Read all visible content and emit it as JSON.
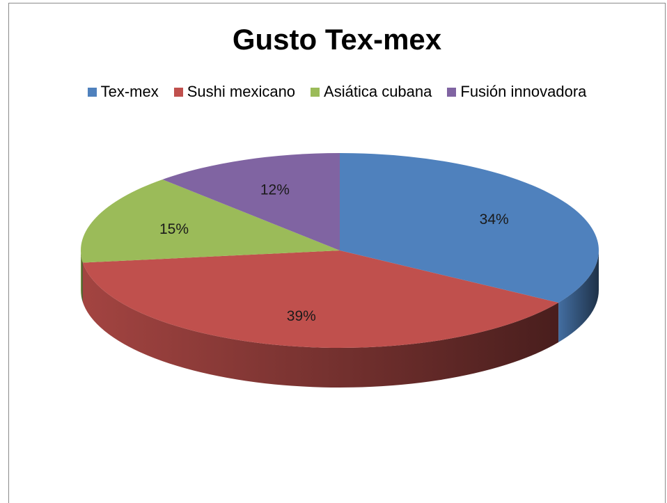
{
  "chart_data": {
    "type": "pie",
    "title": "Gusto Tex-mex",
    "legend_position": "top",
    "labels": [
      "Tex-mex",
      "Sushi mexicano",
      "Asiática cubana",
      "Fusión innovadora"
    ],
    "values": [
      34,
      39,
      15,
      12
    ],
    "value_labels": [
      "34%",
      "39%",
      "15%",
      "12%"
    ],
    "colors": [
      "#4f81bd",
      "#c0504d",
      "#9bbb59",
      "#8064a2"
    ],
    "style": "3d-exploded-depth"
  }
}
